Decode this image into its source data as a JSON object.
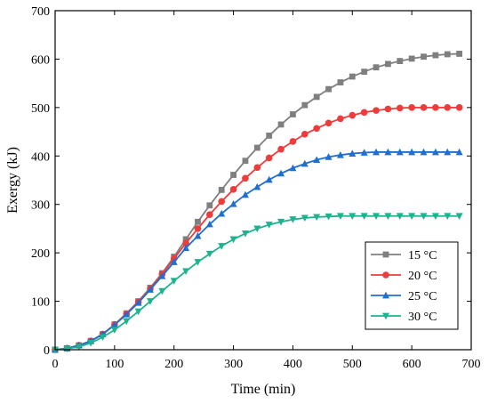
{
  "chart_data": {
    "type": "line",
    "title": "",
    "xlabel": "Time (min)",
    "ylabel": "Exergy (kJ)",
    "xlim": [
      0,
      700
    ],
    "ylim": [
      0,
      700
    ],
    "xticks": [
      0,
      100,
      200,
      300,
      400,
      500,
      600,
      700
    ],
    "yticks": [
      0,
      100,
      200,
      300,
      400,
      500,
      600,
      700
    ],
    "grid": false,
    "legend_position": "lower-right",
    "x": [
      0,
      20,
      40,
      60,
      80,
      100,
      120,
      140,
      160,
      180,
      200,
      220,
      240,
      260,
      280,
      300,
      320,
      340,
      360,
      380,
      400,
      420,
      440,
      460,
      480,
      500,
      520,
      540,
      560,
      580,
      600,
      620,
      640,
      660,
      680
    ],
    "series": [
      {
        "name": "15 °C",
        "color": "#7f7f7f",
        "marker": "square",
        "values": [
          0,
          3,
          9,
          18,
          32,
          52,
          75,
          100,
          128,
          158,
          192,
          228,
          264,
          298,
          330,
          361,
          390,
          417,
          442,
          465,
          486,
          505,
          522,
          538,
          552,
          564,
          574,
          583,
          590,
          596,
          601,
          605,
          608,
          610,
          611
        ]
      },
      {
        "name": "20 °C",
        "color": "#ee3b3b",
        "marker": "circle",
        "values": [
          0,
          3,
          9,
          18,
          32,
          52,
          74,
          99,
          126,
          156,
          188,
          220,
          250,
          279,
          306,
          331,
          354,
          376,
          396,
          414,
          430,
          445,
          457,
          468,
          477,
          484,
          490,
          494,
          497,
          499,
          500,
          500,
          500,
          500,
          500
        ]
      },
      {
        "name": "25 °C",
        "color": "#1f6fd1",
        "marker": "triangle-up",
        "values": [
          0,
          3,
          9,
          18,
          32,
          51,
          73,
          97,
          124,
          152,
          181,
          210,
          235,
          259,
          281,
          301,
          320,
          336,
          351,
          364,
          375,
          384,
          392,
          398,
          402,
          405,
          407,
          408,
          408,
          408,
          408,
          408,
          408,
          408,
          408
        ]
      },
      {
        "name": "30 °C",
        "color": "#1db38f",
        "marker": "triangle-down",
        "values": [
          0,
          2,
          6,
          14,
          26,
          41,
          59,
          79,
          100,
          121,
          142,
          162,
          181,
          198,
          214,
          228,
          240,
          250,
          258,
          264,
          269,
          272,
          274,
          275,
          276,
          276,
          276,
          276,
          276,
          276,
          276,
          276,
          276,
          276,
          276
        ]
      }
    ]
  }
}
